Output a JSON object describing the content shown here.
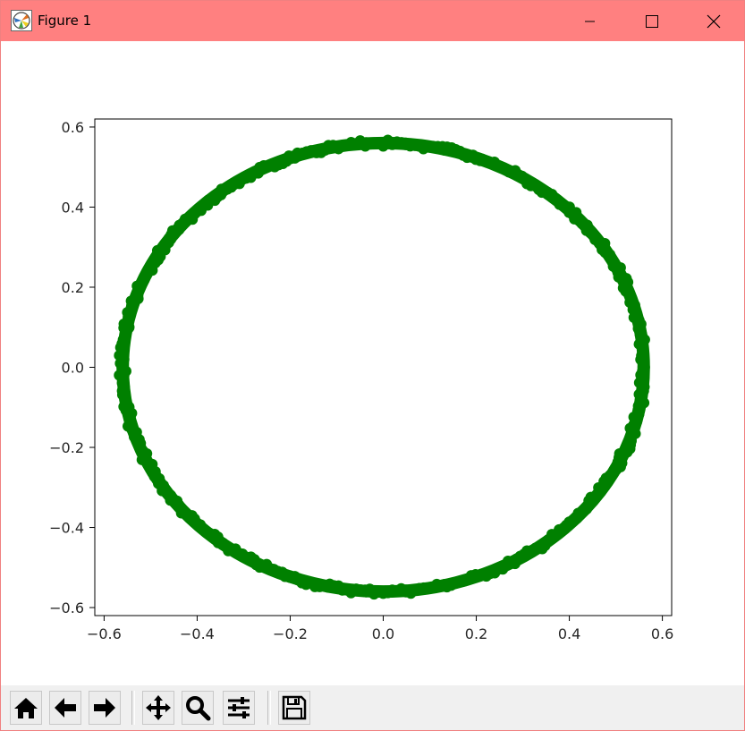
{
  "window": {
    "title": "Figure 1",
    "titlebar_color": "#ff8080",
    "controls": [
      "minimize-icon",
      "maximize-icon",
      "close-icon"
    ]
  },
  "chart_data": {
    "type": "scatter",
    "title": "",
    "xlabel": "",
    "ylabel": "",
    "xlim": [
      -0.62,
      0.62
    ],
    "ylim": [
      -0.62,
      0.62
    ],
    "xticks": [
      -0.6,
      -0.4,
      -0.2,
      0.0,
      0.2,
      0.4,
      0.6
    ],
    "yticks": [
      -0.6,
      -0.4,
      -0.2,
      0.0,
      0.2,
      0.4,
      0.6
    ],
    "xtick_labels": [
      "−0.6",
      "−0.4",
      "−0.2",
      "0.0",
      "0.2",
      "0.4",
      "0.6"
    ],
    "ytick_labels": [
      "−0.6",
      "−0.4",
      "−0.2",
      "0.0",
      "0.2",
      "0.4",
      "0.6"
    ],
    "grid": false,
    "marker_color": "#008000",
    "series": [
      {
        "shape": "ring",
        "center": [
          0.0,
          0.0
        ],
        "radius": 0.56,
        "x": [
          0.56,
          0.554,
          0.536,
          0.506,
          0.466,
          0.415,
          0.355,
          0.287,
          0.212,
          0.132,
          0.048,
          -0.037,
          -0.12,
          -0.2,
          -0.276,
          -0.345,
          -0.406,
          -0.458,
          -0.499,
          -0.529,
          -0.548,
          -0.559,
          -0.559,
          -0.548,
          -0.529,
          -0.499,
          -0.458,
          -0.406,
          -0.345,
          -0.276,
          -0.2,
          -0.12,
          -0.037,
          0.048,
          0.132,
          0.212,
          0.287,
          0.355,
          0.415,
          0.466,
          0.506,
          0.536,
          0.554
        ],
        "y": [
          0.0,
          0.081,
          0.16,
          0.237,
          0.31,
          0.376,
          0.433,
          0.481,
          0.518,
          0.544,
          0.558,
          0.559,
          0.547,
          0.523,
          0.487,
          0.441,
          0.385,
          0.321,
          0.253,
          0.179,
          0.1,
          0.02,
          -0.02,
          -0.1,
          -0.179,
          -0.253,
          -0.321,
          -0.385,
          -0.441,
          -0.487,
          -0.523,
          -0.547,
          -0.559,
          -0.558,
          -0.544,
          -0.518,
          -0.481,
          -0.433,
          -0.376,
          -0.31,
          -0.237,
          -0.16,
          -0.081
        ]
      }
    ]
  },
  "toolbar": {
    "buttons": [
      {
        "name": "home-button",
        "icon": "home-icon"
      },
      {
        "name": "back-button",
        "icon": "arrow-left-icon"
      },
      {
        "name": "forward-button",
        "icon": "arrow-right-icon"
      },
      {
        "name": "pan-button",
        "icon": "move-icon"
      },
      {
        "name": "zoom-button",
        "icon": "magnifier-icon"
      },
      {
        "name": "configure-subplots-button",
        "icon": "sliders-icon"
      },
      {
        "name": "save-button",
        "icon": "floppy-disk-icon"
      }
    ]
  }
}
